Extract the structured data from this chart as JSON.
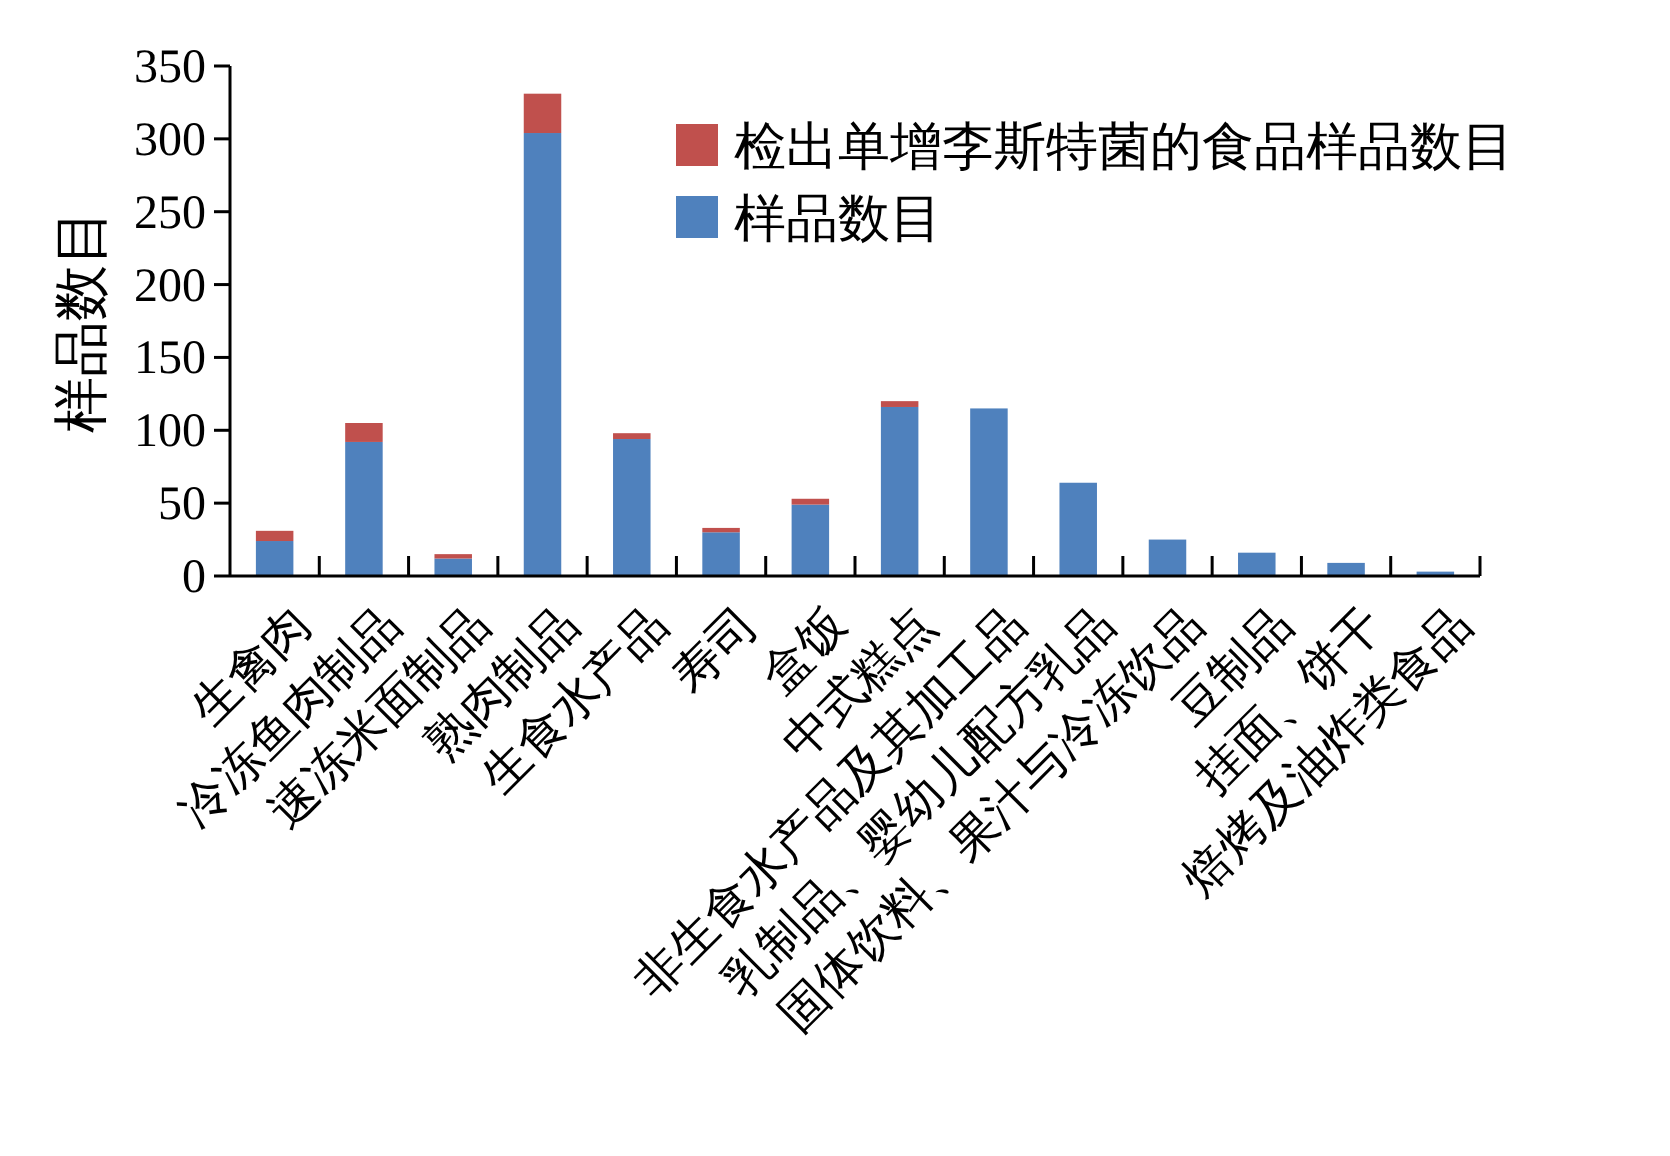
{
  "chart_data": {
    "type": "bar",
    "stacked": true,
    "ylabel": "样品数目",
    "ylim": [
      0,
      350
    ],
    "yticks": [
      0,
      50,
      100,
      150,
      200,
      250,
      300,
      350
    ],
    "grid": false,
    "legend": "top right",
    "categories": [
      "生禽肉",
      "冷冻鱼肉制品",
      "速冻米面制品",
      "熟肉制品",
      "生食水产品",
      "寿司",
      "盒饭",
      "中式糕点",
      "非生食水产品及其加工品",
      "乳制品、婴幼儿配方乳品",
      "固体饮料、果汁与冷冻饮品",
      "豆制品",
      "挂面、饼干",
      "焙烤及油炸类食品"
    ],
    "series": [
      {
        "name": "样品数目",
        "color": "#4f81bd",
        "values": [
          24,
          92,
          12,
          304,
          94,
          30,
          49,
          116,
          115,
          64,
          25,
          16,
          9,
          3
        ]
      },
      {
        "name": "检出单增李斯特菌的食品样品数目",
        "color": "#c0504d",
        "values": [
          7,
          13,
          3,
          27,
          4,
          3,
          4,
          4,
          0,
          0,
          0,
          0,
          0,
          0
        ]
      }
    ]
  }
}
